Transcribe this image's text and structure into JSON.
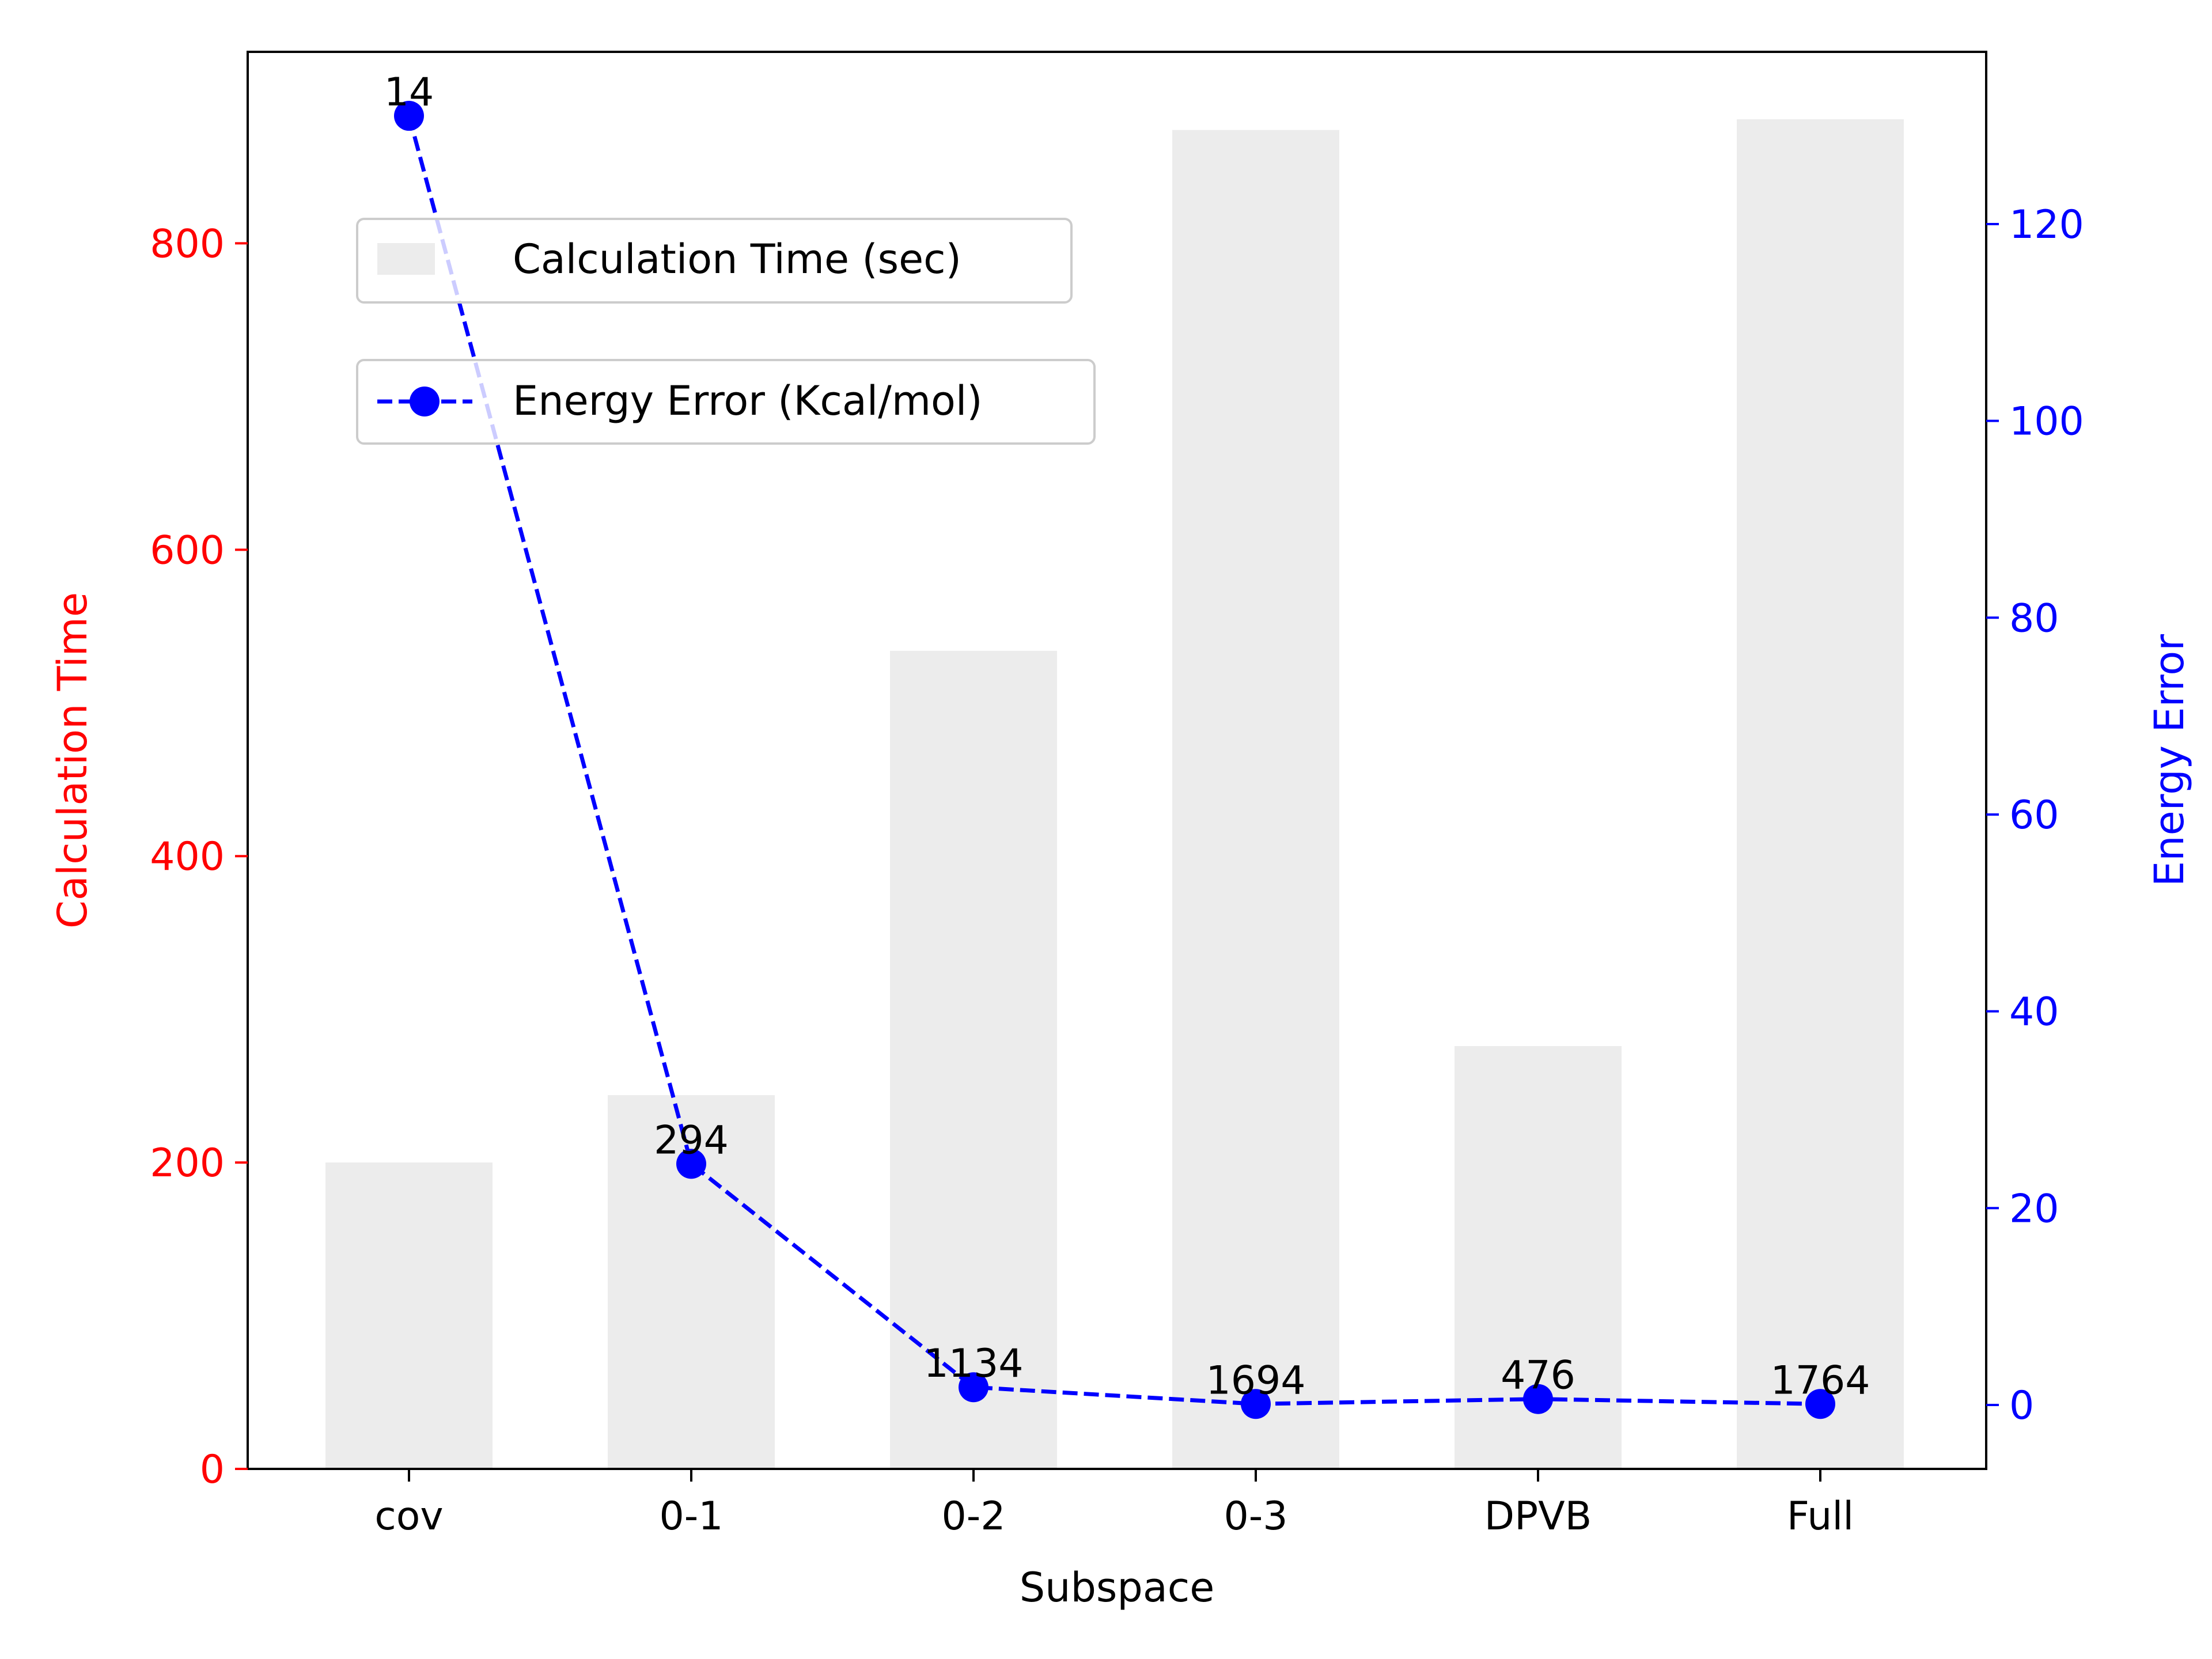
{
  "chart_data": {
    "type": "bar+line",
    "categories": [
      "cov",
      "0-1",
      "0-2",
      "0-3",
      "DPVB",
      "Full"
    ],
    "xlabel": "Subspace",
    "bar_series": {
      "name": "Calculation Time (sec)",
      "axis_label": "Calculation Time",
      "values": [
        200,
        244,
        534,
        874,
        276,
        881
      ],
      "ylim": [
        0,
        925
      ],
      "yticks": [
        0,
        200,
        400,
        600,
        800
      ],
      "color": "#ececec",
      "axis_color": "#ff0000"
    },
    "line_series": {
      "name": "Energy Error (Kcal/mol)",
      "axis_label": "Energy Error",
      "values": [
        131,
        24.5,
        1.8,
        0.1,
        0.6,
        0.1
      ],
      "data_labels": [
        "14",
        "294",
        "1134",
        "1694",
        "476",
        "1764"
      ],
      "ylim": [
        -6.5,
        137.5
      ],
      "yticks": [
        0,
        20,
        40,
        60,
        80,
        100,
        120
      ],
      "color": "#0000ff",
      "axis_color": "#0000ff",
      "style": "dashed",
      "marker": "circle"
    },
    "grid": false,
    "legend_position": "upper-left"
  }
}
